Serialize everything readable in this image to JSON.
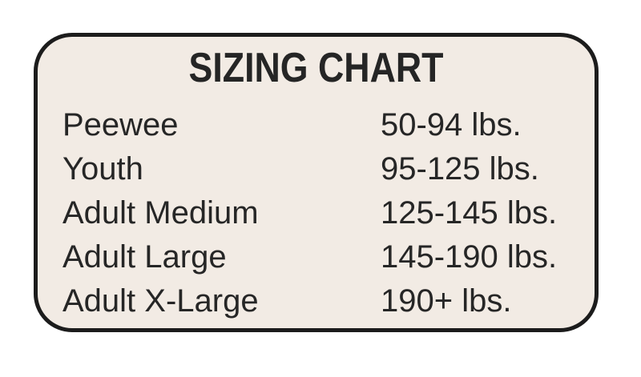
{
  "chart_data": {
    "type": "table",
    "title": "SIZING CHART",
    "rows": [
      {
        "label": "Peewee",
        "value": "50-94 lbs."
      },
      {
        "label": "Youth",
        "value": "95-125 lbs."
      },
      {
        "label": "Adult Medium",
        "value": "125-145 lbs."
      },
      {
        "label": "Adult Large",
        "value": "145-190 lbs."
      },
      {
        "label": "Adult X-Large",
        "value": "190+ lbs."
      }
    ],
    "layout": {
      "legend": "none",
      "grid": "off"
    }
  },
  "colors": {
    "box_background": "#f2ebe4",
    "box_border": "#1c1c1c",
    "text": "#262626",
    "page_background": "#ffffff"
  }
}
